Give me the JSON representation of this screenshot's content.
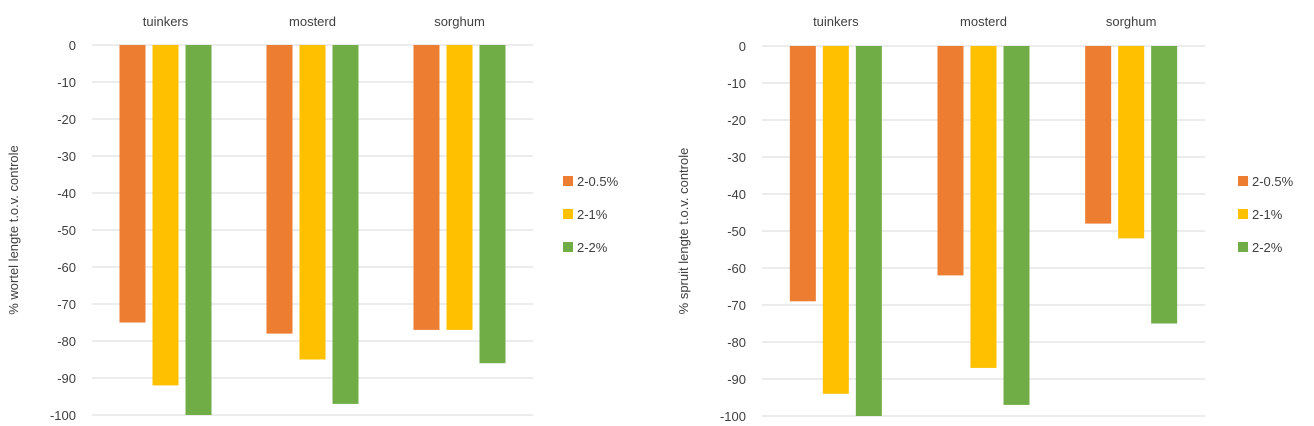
{
  "chart_data": [
    {
      "type": "bar",
      "categories": [
        "tuinkers",
        "mosterd",
        "sorghum"
      ],
      "ylabel": "% wortel lengte t.o.v. controle",
      "ylim": [
        -100,
        0
      ],
      "yticks": [
        "0",
        "-10",
        "-20",
        "-30",
        "-40",
        "-50",
        "-60",
        "-70",
        "-80",
        "-90",
        "-100"
      ],
      "legend_position": "right",
      "series": [
        {
          "name": "2-0.5%",
          "color": "#ed7d31",
          "values": [
            -75,
            -78,
            -77
          ]
        },
        {
          "name": "2-1%",
          "color": "#ffc000",
          "values": [
            -92,
            -85,
            -77
          ]
        },
        {
          "name": "2-2%",
          "color": "#70ad47",
          "values": [
            -100,
            -97,
            -86
          ]
        }
      ]
    },
    {
      "type": "bar",
      "categories": [
        "tuinkers",
        "mosterd",
        "sorghum"
      ],
      "ylabel": "% spruit lengte t.o.v. controle",
      "ylim": [
        -100,
        0
      ],
      "yticks": [
        "0",
        "-10",
        "-20",
        "-30",
        "-40",
        "-50",
        "-60",
        "-70",
        "-80",
        "-90",
        "-100"
      ],
      "legend_position": "right",
      "series": [
        {
          "name": "2-0.5%",
          "color": "#ed7d31",
          "values": [
            -69,
            -62,
            -48
          ]
        },
        {
          "name": "2-1%",
          "color": "#ffc000",
          "values": [
            -94,
            -87,
            -52
          ]
        },
        {
          "name": "2-2%",
          "color": "#70ad47",
          "values": [
            -100,
            -97,
            -75
          ]
        }
      ]
    }
  ]
}
